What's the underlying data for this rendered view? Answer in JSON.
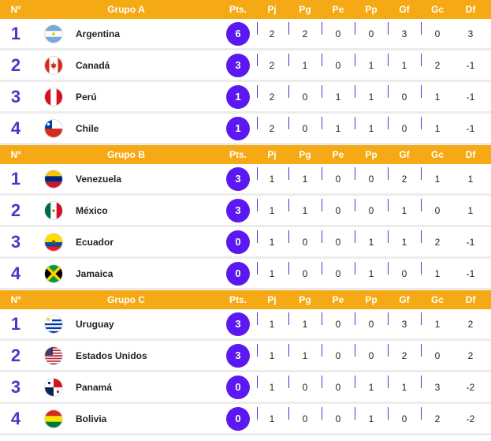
{
  "headers": {
    "pos": "Nº",
    "pts": "Pts.",
    "pj": "Pj",
    "pg": "Pg",
    "pe": "Pe",
    "pp": "Pp",
    "gf": "Gf",
    "gc": "Gc",
    "df": "Df"
  },
  "groups": [
    {
      "name": "Grupo A",
      "rows": [
        {
          "pos": "1",
          "team": "Argentina",
          "flag": "argentina-flag-icon",
          "pts": "6",
          "pj": "2",
          "pg": "2",
          "pe": "0",
          "pp": "0",
          "gf": "3",
          "gc": "0",
          "df": "3"
        },
        {
          "pos": "2",
          "team": "Canadá",
          "flag": "canada-flag-icon",
          "pts": "3",
          "pj": "2",
          "pg": "1",
          "pe": "0",
          "pp": "1",
          "gf": "1",
          "gc": "2",
          "df": "-1"
        },
        {
          "pos": "3",
          "team": "Perú",
          "flag": "peru-flag-icon",
          "pts": "1",
          "pj": "2",
          "pg": "0",
          "pe": "1",
          "pp": "1",
          "gf": "0",
          "gc": "1",
          "df": "-1"
        },
        {
          "pos": "4",
          "team": "Chile",
          "flag": "chile-flag-icon",
          "pts": "1",
          "pj": "2",
          "pg": "0",
          "pe": "1",
          "pp": "1",
          "gf": "0",
          "gc": "1",
          "df": "-1"
        }
      ]
    },
    {
      "name": "Grupo B",
      "rows": [
        {
          "pos": "1",
          "team": "Venezuela",
          "flag": "venezuela-flag-icon",
          "pts": "3",
          "pj": "1",
          "pg": "1",
          "pe": "0",
          "pp": "0",
          "gf": "2",
          "gc": "1",
          "df": "1"
        },
        {
          "pos": "2",
          "team": "México",
          "flag": "mexico-flag-icon",
          "pts": "3",
          "pj": "1",
          "pg": "1",
          "pe": "0",
          "pp": "0",
          "gf": "1",
          "gc": "0",
          "df": "1"
        },
        {
          "pos": "3",
          "team": "Ecuador",
          "flag": "ecuador-flag-icon",
          "pts": "0",
          "pj": "1",
          "pg": "0",
          "pe": "0",
          "pp": "1",
          "gf": "1",
          "gc": "2",
          "df": "-1"
        },
        {
          "pos": "4",
          "team": "Jamaica",
          "flag": "jamaica-flag-icon",
          "pts": "0",
          "pj": "1",
          "pg": "0",
          "pe": "0",
          "pp": "1",
          "gf": "0",
          "gc": "1",
          "df": "-1"
        }
      ]
    },
    {
      "name": "Grupo C",
      "rows": [
        {
          "pos": "1",
          "team": "Uruguay",
          "flag": "uruguay-flag-icon",
          "pts": "3",
          "pj": "1",
          "pg": "1",
          "pe": "0",
          "pp": "0",
          "gf": "3",
          "gc": "1",
          "df": "2"
        },
        {
          "pos": "2",
          "team": "Estados Unidos",
          "flag": "usa-flag-icon",
          "pts": "3",
          "pj": "1",
          "pg": "1",
          "pe": "0",
          "pp": "0",
          "gf": "2",
          "gc": "0",
          "df": "2"
        },
        {
          "pos": "3",
          "team": "Panamá",
          "flag": "panama-flag-icon",
          "pts": "0",
          "pj": "1",
          "pg": "0",
          "pe": "0",
          "pp": "1",
          "gf": "1",
          "gc": "3",
          "df": "-2"
        },
        {
          "pos": "4",
          "team": "Bolivia",
          "flag": "bolivia-flag-icon",
          "pts": "0",
          "pj": "1",
          "pg": "0",
          "pe": "0",
          "pp": "1",
          "gf": "0",
          "gc": "2",
          "df": "-2"
        }
      ]
    }
  ],
  "colors": {
    "header_bg": "#f5a914",
    "accent": "#5b18f0",
    "position_text": "#5a2fc6"
  }
}
